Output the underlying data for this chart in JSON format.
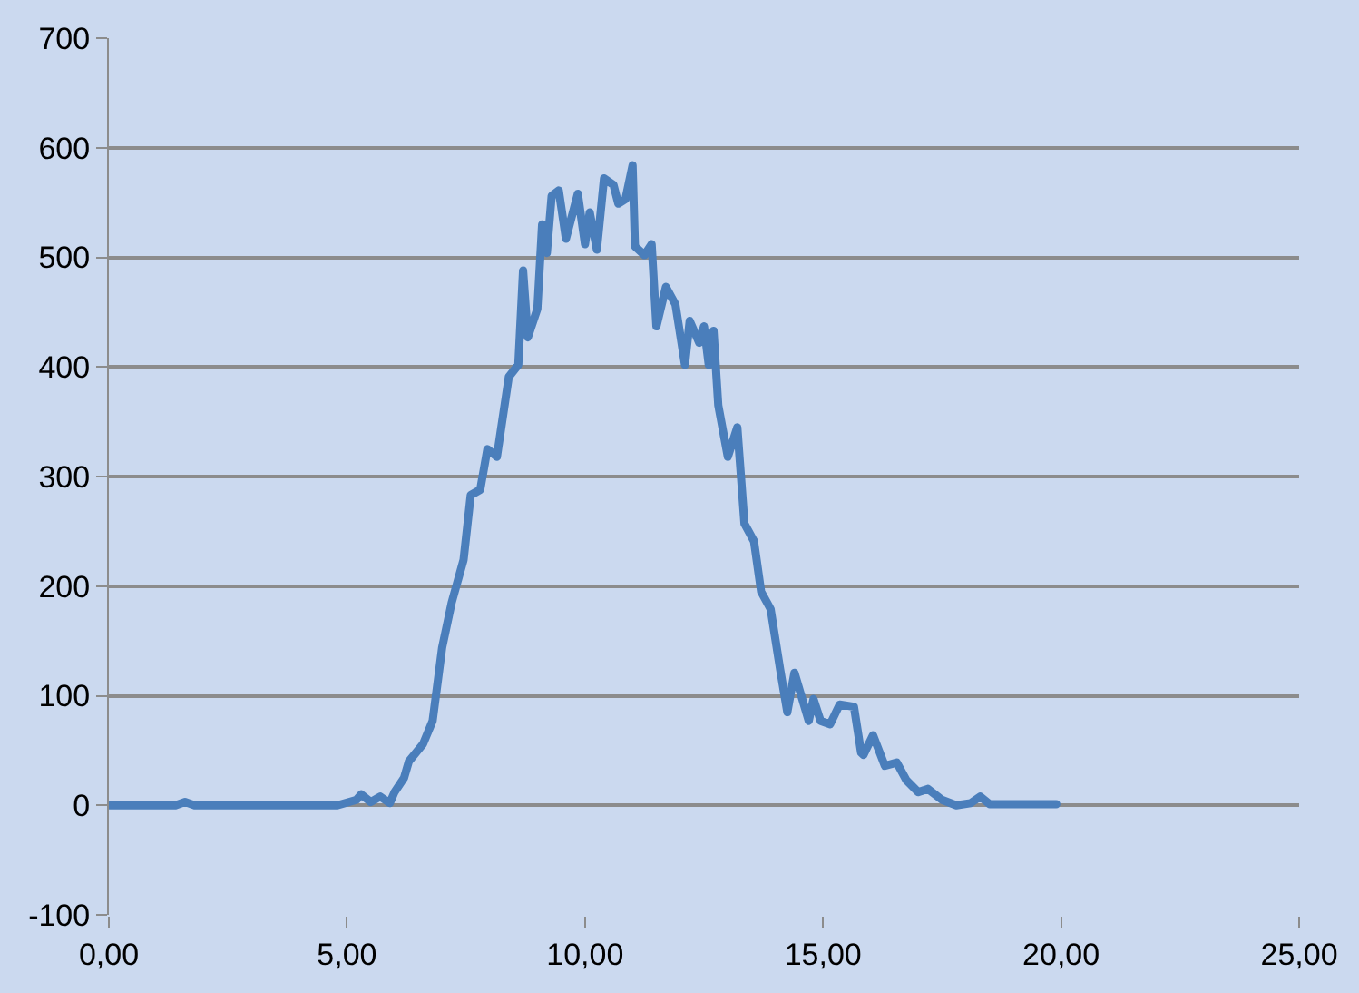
{
  "chart_data": {
    "type": "line",
    "series": [
      {
        "color": "#4a7ebb",
        "x": [
          0,
          1.4,
          1.6,
          1.8,
          4.8,
          5.2,
          5.3,
          5.5,
          5.7,
          5.9,
          6.0,
          6.2,
          6.3,
          6.6,
          6.8,
          7.0,
          7.2,
          7.45,
          7.6,
          7.8,
          7.95,
          8.15,
          8.4,
          8.6,
          8.7,
          8.8,
          9.0,
          9.1,
          9.2,
          9.3,
          9.45,
          9.6,
          9.85,
          10.0,
          10.1,
          10.25,
          10.4,
          10.6,
          10.7,
          10.85,
          11.0,
          11.05,
          11.25,
          11.4,
          11.5,
          11.7,
          11.9,
          12.1,
          12.2,
          12.4,
          12.5,
          12.6,
          12.7,
          12.8,
          13.0,
          13.2,
          13.35,
          13.55,
          13.7,
          13.9,
          14.1,
          14.25,
          14.4,
          14.7,
          14.8,
          14.95,
          15.15,
          15.35,
          15.65,
          15.8,
          15.85,
          16.05,
          16.3,
          16.55,
          16.75,
          17.0,
          17.2,
          17.5,
          17.8,
          18.1,
          18.3,
          18.5,
          19.9
        ],
        "values": [
          0,
          0,
          3,
          0,
          0,
          5,
          10,
          3,
          8,
          2,
          12,
          25,
          40,
          56,
          77,
          144,
          185,
          224,
          283,
          288,
          325,
          318,
          391,
          402,
          488,
          427,
          453,
          530,
          504,
          556,
          561,
          517,
          558,
          512,
          541,
          507,
          572,
          566,
          549,
          553,
          584,
          510,
          502,
          512,
          437,
          473,
          457,
          402,
          442,
          422,
          437,
          402,
          433,
          365,
          318,
          345,
          257,
          241,
          195,
          179,
          124,
          85,
          121,
          77,
          97,
          77,
          74,
          92,
          90,
          48,
          46,
          64,
          36,
          39,
          23,
          12,
          15,
          5,
          0,
          2,
          8,
          1,
          1
        ]
      }
    ],
    "xlim": [
      0,
      25
    ],
    "xticks": [
      {
        "value": 0,
        "label": "0,00"
      },
      {
        "value": 5,
        "label": "5,00"
      },
      {
        "value": 10,
        "label": "10,00"
      },
      {
        "value": 15,
        "label": "15,00"
      },
      {
        "value": 20,
        "label": "20,00"
      },
      {
        "value": 25,
        "label": "25,00"
      }
    ],
    "ylim": [
      -100,
      700
    ],
    "yticks": [
      -100,
      0,
      100,
      200,
      300,
      400,
      500,
      600,
      700
    ],
    "grid": "y",
    "marker": "none",
    "line_style": "solid"
  }
}
